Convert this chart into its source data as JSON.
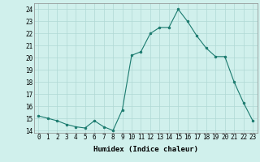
{
  "x": [
    0,
    1,
    2,
    3,
    4,
    5,
    6,
    7,
    8,
    9,
    10,
    11,
    12,
    13,
    14,
    15,
    16,
    17,
    18,
    19,
    20,
    21,
    22,
    23
  ],
  "y": [
    15.2,
    15.0,
    14.8,
    14.5,
    14.3,
    14.2,
    14.8,
    14.3,
    14.0,
    15.7,
    20.2,
    20.5,
    22.0,
    22.5,
    22.5,
    24.0,
    23.0,
    21.8,
    20.8,
    20.1,
    20.1,
    18.0,
    16.3,
    14.8
  ],
  "line_color": "#1a7a6e",
  "marker_color": "#1a7a6e",
  "bg_color": "#d0f0ec",
  "grid_color": "#b0d8d4",
  "xlabel": "Humidex (Indice chaleur)",
  "ylabel": "",
  "xlim": [
    -0.5,
    23.5
  ],
  "ylim": [
    13.8,
    24.5
  ],
  "yticks": [
    14,
    15,
    16,
    17,
    18,
    19,
    20,
    21,
    22,
    23,
    24
  ],
  "xtick_labels": [
    "0",
    "1",
    "2",
    "3",
    "4",
    "5",
    "6",
    "7",
    "8",
    "9",
    "10",
    "11",
    "12",
    "13",
    "14",
    "15",
    "16",
    "17",
    "18",
    "19",
    "20",
    "21",
    "22",
    "23"
  ],
  "label_fontsize": 6.5,
  "tick_fontsize": 5.5
}
